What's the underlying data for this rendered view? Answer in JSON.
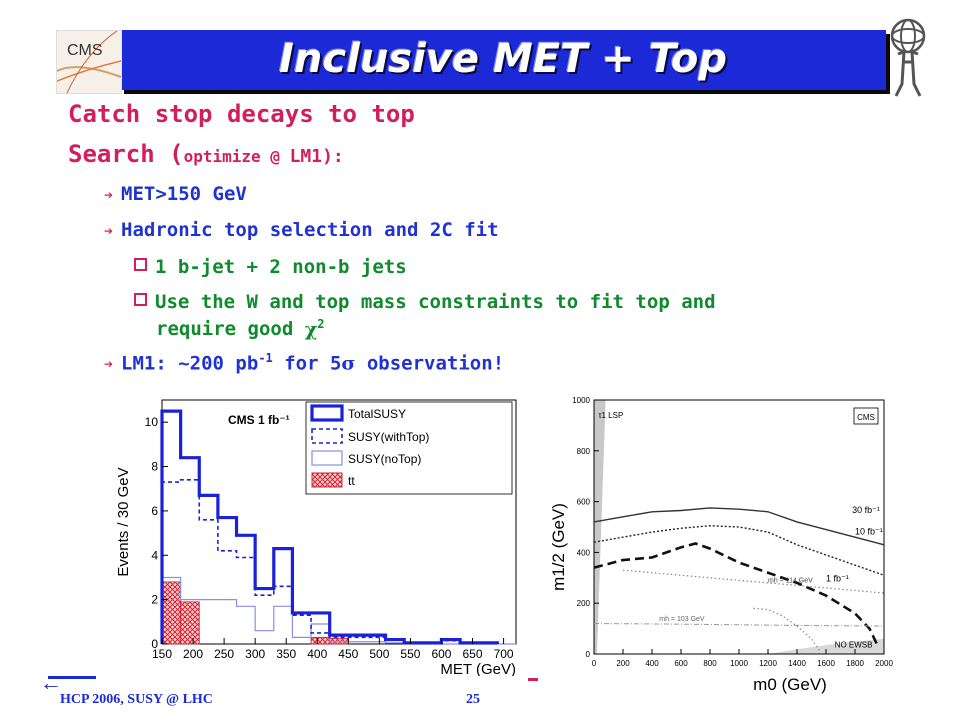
{
  "header": {
    "title": "Inclusive MET + Top"
  },
  "logo_left": {
    "text": "CMS"
  },
  "headings": [
    {
      "text": "Catch stop decays to top"
    },
    {
      "prefix": "Search (",
      "small": "optimize @ ",
      "suffix": "LM1):"
    }
  ],
  "bullets": [
    {
      "text": "MET>150 GeV"
    },
    {
      "text": "Hadronic top selection and 2C fit"
    },
    {
      "pre": "LM1: ~200 pb",
      "sup": "-1",
      "mid": " for 5",
      "sigma": "σ",
      "post": " observation!"
    }
  ],
  "sub_bullets": [
    {
      "text": "1 b-jet + 2 non-b jets"
    },
    {
      "line1": "Use the W and top mass constraints to fit top and",
      "line2_pre": "require good ",
      "chi": "χ",
      "sup": "2"
    }
  ],
  "footer": {
    "left": "HCP 2006,    SUSY @ LHC",
    "page": "25"
  },
  "chart_data": [
    {
      "type": "line",
      "subtype": "histogram",
      "title": "CMS 1 fb⁻¹",
      "xlabel": "MET (GeV)",
      "ylabel": "Events / 30 GeV",
      "xlim": [
        150,
        720
      ],
      "ylim": [
        0,
        11
      ],
      "xticks": [
        "150",
        "200",
        "250",
        "300",
        "350",
        "400",
        "450",
        "500",
        "550",
        "600",
        "650",
        "700"
      ],
      "yticks": [
        "0",
        "2",
        "4",
        "6",
        "8",
        "10"
      ],
      "legend_position": "top-right",
      "colors": {
        "total": "#1a22d8",
        "withtop": "#1a22d8",
        "notop": "#8a8ee6",
        "tt": "#d62030"
      },
      "series": [
        {
          "name": "TotalSUSY",
          "style": "thick-solid",
          "bins": [
            [
              150,
              180,
              10.5
            ],
            [
              180,
              210,
              8.4
            ],
            [
              210,
              240,
              6.7
            ],
            [
              240,
              270,
              5.7
            ],
            [
              270,
              300,
              4.9
            ],
            [
              300,
              330,
              2.5
            ],
            [
              330,
              360,
              4.3
            ],
            [
              360,
              390,
              1.4
            ],
            [
              390,
              420,
              1.4
            ],
            [
              420,
              450,
              0.4
            ],
            [
              450,
              510,
              0.4
            ],
            [
              510,
              540,
              0.2
            ],
            [
              540,
              600,
              0.05
            ],
            [
              600,
              630,
              0.2
            ],
            [
              630,
              690,
              0.05
            ]
          ]
        },
        {
          "name": "SUSY(withTop)",
          "style": "dashed",
          "bins": [
            [
              150,
              180,
              7.3
            ],
            [
              180,
              210,
              7.4
            ],
            [
              210,
              240,
              5.6
            ],
            [
              240,
              270,
              4.2
            ],
            [
              270,
              300,
              3.9
            ],
            [
              300,
              330,
              2.2
            ],
            [
              330,
              360,
              2.6
            ],
            [
              360,
              390,
              1.3
            ],
            [
              390,
              420,
              0.5
            ],
            [
              420,
              450,
              0.3
            ],
            [
              450,
              510,
              0.3
            ],
            [
              510,
              540,
              0.2
            ],
            [
              540,
              600,
              0.05
            ],
            [
              600,
              630,
              0.15
            ],
            [
              630,
              690,
              0.05
            ]
          ]
        },
        {
          "name": "SUSY(noTop)",
          "style": "thin-solid",
          "bins": [
            [
              150,
              180,
              3.0
            ],
            [
              180,
              210,
              2.0
            ],
            [
              210,
              240,
              2.0
            ],
            [
              240,
              270,
              2.0
            ],
            [
              270,
              300,
              1.7
            ],
            [
              300,
              330,
              0.6
            ],
            [
              330,
              360,
              1.7
            ],
            [
              360,
              390,
              0.3
            ],
            [
              390,
              420,
              0.9
            ],
            [
              420,
              450,
              0.1
            ],
            [
              450,
              510,
              0.1
            ],
            [
              510,
              540,
              0.05
            ],
            [
              540,
              720,
              0.0
            ]
          ]
        },
        {
          "name": "tt",
          "style": "hatched-fill",
          "bins": [
            [
              150,
              180,
              2.8
            ],
            [
              180,
              210,
              1.9
            ],
            [
              390,
              420,
              0.3
            ],
            [
              420,
              450,
              0.25
            ]
          ]
        }
      ]
    },
    {
      "type": "line",
      "subtype": "exclusion-contours",
      "xlabel": "m0 (GeV)",
      "ylabel": "m1/2 (GeV)",
      "xlim": [
        0,
        2000
      ],
      "ylim": [
        0,
        1000
      ],
      "xticks": [
        "0",
        "200",
        "400",
        "600",
        "800",
        "1000",
        "1200",
        "1400",
        "1600",
        "1800",
        "2000"
      ],
      "yticks": [
        "0",
        "200",
        "400",
        "600",
        "800",
        "1000"
      ],
      "badge": "CMS",
      "annotations": [
        "τ1 LSP",
        "NO EWSB",
        "mh = 114 GeV",
        "mh = 103 GeV"
      ],
      "series": [
        {
          "name": "30 fb⁻¹",
          "style": "solid",
          "points": [
            [
              0,
              520
            ],
            [
              200,
              540
            ],
            [
              400,
              560
            ],
            [
              600,
              565
            ],
            [
              800,
              575
            ],
            [
              1000,
              570
            ],
            [
              1200,
              560
            ],
            [
              1400,
              520
            ],
            [
              1600,
              490
            ],
            [
              1800,
              460
            ],
            [
              2000,
              430
            ]
          ]
        },
        {
          "name": "10 fb⁻¹",
          "style": "dotted",
          "points": [
            [
              0,
              440
            ],
            [
              200,
              460
            ],
            [
              400,
              480
            ],
            [
              600,
              495
            ],
            [
              800,
              505
            ],
            [
              1000,
              500
            ],
            [
              1200,
              480
            ],
            [
              1400,
              430
            ],
            [
              1600,
              390
            ],
            [
              1800,
              350
            ],
            [
              2000,
              310
            ]
          ]
        },
        {
          "name": "1 fb⁻¹",
          "style": "dashed",
          "points": [
            [
              0,
              340
            ],
            [
              200,
              370
            ],
            [
              400,
              380
            ],
            [
              600,
              420
            ],
            [
              700,
              435
            ],
            [
              800,
              415
            ],
            [
              1000,
              360
            ],
            [
              1200,
              320
            ],
            [
              1400,
              280
            ],
            [
              1600,
              230
            ],
            [
              1800,
              160
            ],
            [
              1900,
              100
            ],
            [
              1950,
              40
            ]
          ]
        },
        {
          "name": "mh = 114 GeV",
          "style": "gray-dotted",
          "points": [
            [
              200,
              330
            ],
            [
              600,
              310
            ],
            [
              1000,
              290
            ],
            [
              1400,
              270
            ],
            [
              1800,
              250
            ],
            [
              2000,
              240
            ]
          ]
        },
        {
          "name": "mh = 103 GeV",
          "style": "gray-dashdot",
          "points": [
            [
              0,
              120
            ],
            [
              500,
              118
            ],
            [
              1000,
              115
            ],
            [
              1500,
              112
            ],
            [
              2000,
              110
            ]
          ]
        },
        {
          "name": "NO EWSB boundary",
          "style": "gray-dotted",
          "points": [
            [
              1100,
              180
            ],
            [
              1200,
              175
            ],
            [
              1300,
              150
            ],
            [
              1400,
              110
            ],
            [
              1500,
              60
            ],
            [
              1560,
              10
            ]
          ]
        }
      ]
    }
  ]
}
